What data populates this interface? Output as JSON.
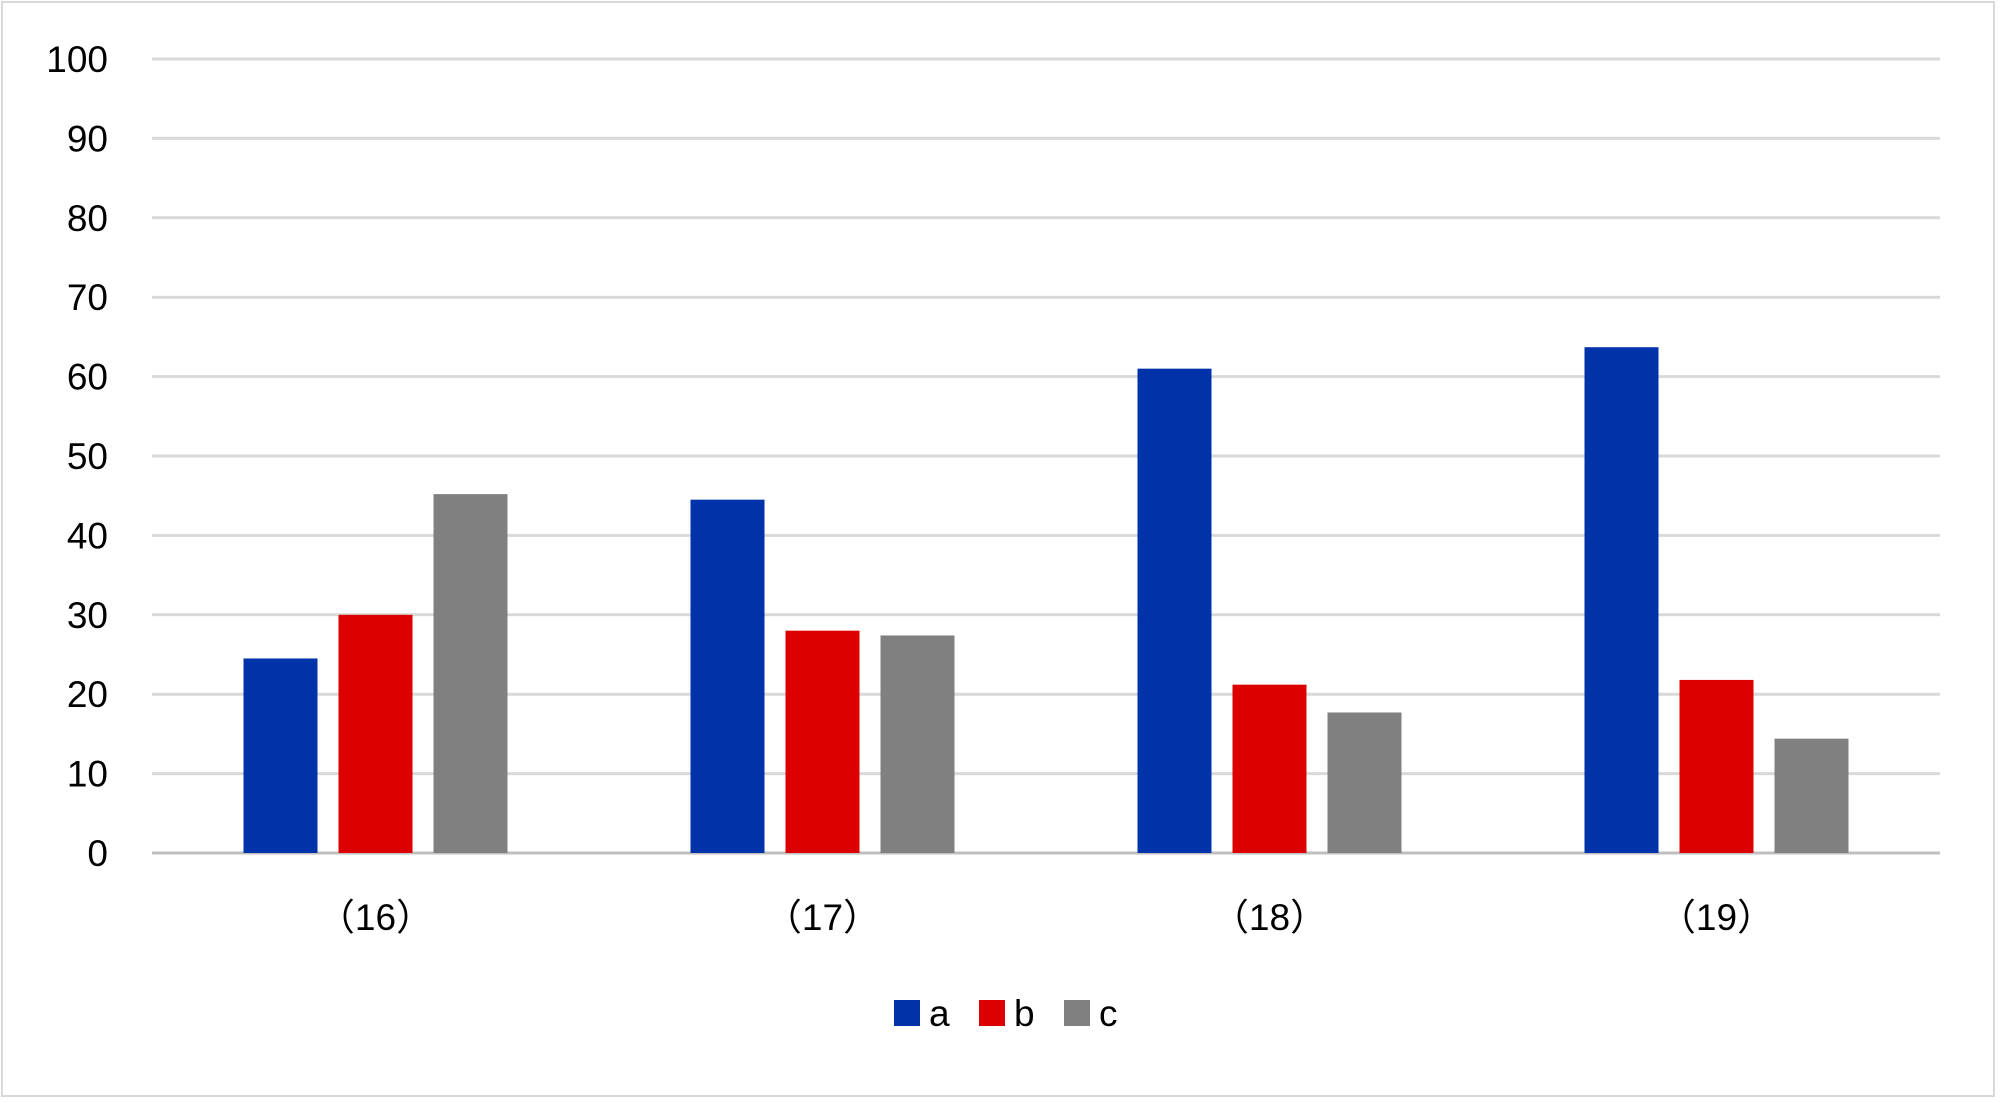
{
  "chart_data": {
    "type": "bar",
    "title": "",
    "xlabel": "",
    "ylabel": "",
    "categories": [
      "（16）",
      "（17）",
      "（18）",
      "（19）"
    ],
    "series": [
      {
        "name": "a",
        "color": "#0033aa",
        "values": [
          24.5,
          44.5,
          61,
          63.7
        ]
      },
      {
        "name": "b",
        "color": "#dd0000",
        "values": [
          30,
          28,
          21.2,
          21.8
        ]
      },
      {
        "name": "c",
        "color": "#808080",
        "values": [
          45.2,
          27.4,
          17.7,
          14.4
        ]
      }
    ],
    "ylim": [
      0,
      100
    ],
    "yticks": [
      "0",
      "10",
      "20",
      "30",
      "40",
      "50",
      "60",
      "70",
      "80",
      "90",
      "100"
    ],
    "grid": true,
    "gridline_color": "#d9d9d9",
    "legend_position": "bottom-center"
  }
}
